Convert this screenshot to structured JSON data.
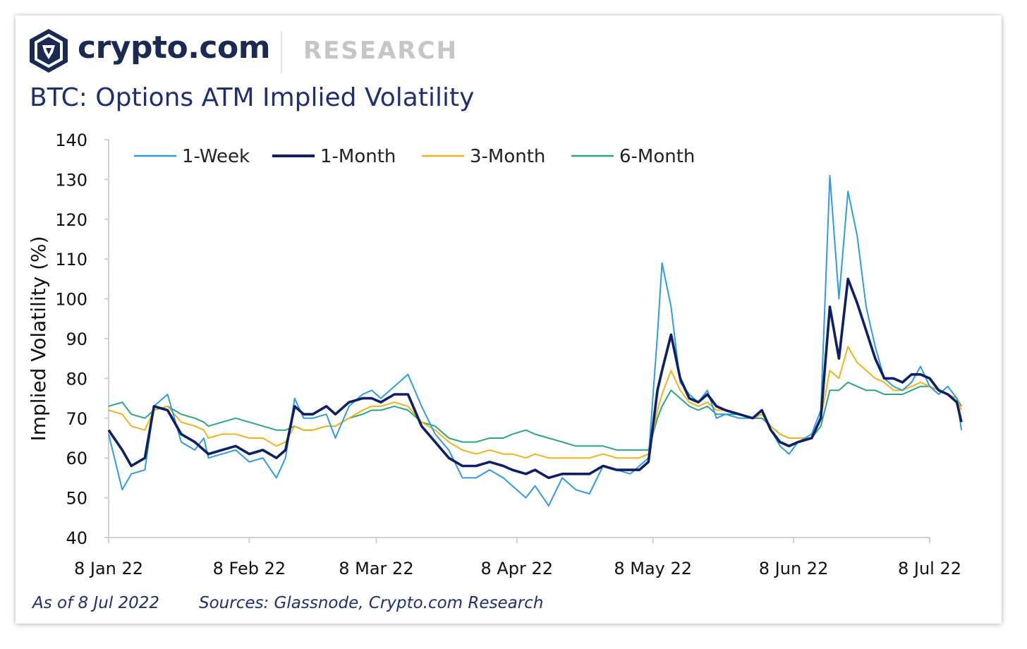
{
  "header": {
    "brand": "crypto.com",
    "section": "RESEARCH",
    "logo_icon": "crypto-com-lion-shield-icon"
  },
  "footer": {
    "as_of": "As of 8 Jul 2022",
    "sources": "Sources: Glassnode, Crypto.com Research"
  },
  "colors": {
    "brand": "#1b2a52",
    "title": "#1e2f73",
    "week": "#2e9be6",
    "month": "#0d1f66",
    "three_month": "#f2b318",
    "six_month": "#2aa685"
  },
  "chart_data": {
    "type": "line",
    "title": "BTC: Options ATM Implied Volatility",
    "xlabel": "",
    "ylabel": "Implied Volatility (%)",
    "ylim": [
      40,
      140
    ],
    "yticks": [
      40,
      50,
      60,
      70,
      80,
      90,
      100,
      110,
      120,
      130,
      140
    ],
    "x_tick_labels": [
      "8 Jan 22",
      "8 Feb 22",
      "8 Mar 22",
      "8 Apr 22",
      "8 May 22",
      "8 Jun 22",
      "8 Jul 22"
    ],
    "x_tick_day_index": [
      0,
      31,
      59,
      90,
      120,
      151,
      181
    ],
    "x_start": "8 Jan 22",
    "x_end": "8 Jul 22",
    "legend_position": "top-left",
    "grid": false,
    "series": [
      {
        "name": "1-Week",
        "points": [
          [
            0,
            66
          ],
          [
            3,
            52
          ],
          [
            5,
            56
          ],
          [
            8,
            57
          ],
          [
            10,
            73
          ],
          [
            13,
            76
          ],
          [
            16,
            64
          ],
          [
            19,
            62
          ],
          [
            21,
            65
          ],
          [
            22,
            60
          ],
          [
            25,
            61
          ],
          [
            28,
            62
          ],
          [
            31,
            59
          ],
          [
            34,
            60
          ],
          [
            37,
            55
          ],
          [
            39,
            60
          ],
          [
            41,
            75
          ],
          [
            43,
            70
          ],
          [
            45,
            70
          ],
          [
            48,
            71
          ],
          [
            50,
            65
          ],
          [
            53,
            73
          ],
          [
            56,
            76
          ],
          [
            58,
            77
          ],
          [
            60,
            75
          ],
          [
            63,
            78
          ],
          [
            66,
            81
          ],
          [
            69,
            73
          ],
          [
            72,
            66
          ],
          [
            75,
            62
          ],
          [
            78,
            55
          ],
          [
            81,
            55
          ],
          [
            84,
            57
          ],
          [
            87,
            55
          ],
          [
            89,
            53
          ],
          [
            92,
            50
          ],
          [
            94,
            53
          ],
          [
            97,
            48
          ],
          [
            100,
            55
          ],
          [
            103,
            52
          ],
          [
            106,
            51
          ],
          [
            109,
            58
          ],
          [
            112,
            57
          ],
          [
            115,
            56
          ],
          [
            117,
            58
          ],
          [
            119,
            60
          ],
          [
            121,
            91
          ],
          [
            122,
            109
          ],
          [
            124,
            98
          ],
          [
            126,
            79
          ],
          [
            128,
            76
          ],
          [
            130,
            74
          ],
          [
            132,
            77
          ],
          [
            134,
            70
          ],
          [
            136,
            71
          ],
          [
            139,
            70
          ],
          [
            142,
            70
          ],
          [
            144,
            72
          ],
          [
            146,
            67
          ],
          [
            148,
            63
          ],
          [
            150,
            61
          ],
          [
            152,
            64
          ],
          [
            155,
            66
          ],
          [
            157,
            72
          ],
          [
            159,
            131
          ],
          [
            161,
            100
          ],
          [
            163,
            127
          ],
          [
            165,
            116
          ],
          [
            167,
            98
          ],
          [
            169,
            88
          ],
          [
            171,
            80
          ],
          [
            173,
            78
          ],
          [
            175,
            77
          ],
          [
            177,
            79
          ],
          [
            179,
            83
          ],
          [
            181,
            78
          ],
          [
            183,
            76
          ],
          [
            185,
            78
          ],
          [
            187,
            75
          ],
          [
            188,
            67
          ]
        ]
      },
      {
        "name": "1-Month",
        "points": [
          [
            0,
            67
          ],
          [
            3,
            62
          ],
          [
            5,
            58
          ],
          [
            8,
            60
          ],
          [
            10,
            73
          ],
          [
            13,
            72
          ],
          [
            16,
            66
          ],
          [
            19,
            64
          ],
          [
            21,
            62
          ],
          [
            22,
            61
          ],
          [
            25,
            62
          ],
          [
            28,
            63
          ],
          [
            31,
            61
          ],
          [
            34,
            62
          ],
          [
            37,
            60
          ],
          [
            39,
            62
          ],
          [
            41,
            73
          ],
          [
            43,
            71
          ],
          [
            45,
            71
          ],
          [
            48,
            73
          ],
          [
            50,
            71
          ],
          [
            53,
            74
          ],
          [
            56,
            75
          ],
          [
            58,
            75
          ],
          [
            60,
            74
          ],
          [
            63,
            76
          ],
          [
            66,
            76
          ],
          [
            69,
            68
          ],
          [
            72,
            64
          ],
          [
            75,
            60
          ],
          [
            78,
            58
          ],
          [
            81,
            58
          ],
          [
            84,
            59
          ],
          [
            87,
            58
          ],
          [
            89,
            57
          ],
          [
            92,
            56
          ],
          [
            94,
            57
          ],
          [
            97,
            55
          ],
          [
            100,
            56
          ],
          [
            103,
            56
          ],
          [
            106,
            56
          ],
          [
            109,
            58
          ],
          [
            112,
            57
          ],
          [
            115,
            57
          ],
          [
            117,
            57
          ],
          [
            119,
            59
          ],
          [
            121,
            77
          ],
          [
            122,
            82
          ],
          [
            124,
            91
          ],
          [
            126,
            80
          ],
          [
            128,
            75
          ],
          [
            130,
            74
          ],
          [
            132,
            76
          ],
          [
            134,
            73
          ],
          [
            136,
            72
          ],
          [
            139,
            71
          ],
          [
            142,
            70
          ],
          [
            144,
            72
          ],
          [
            146,
            67
          ],
          [
            148,
            64
          ],
          [
            150,
            63
          ],
          [
            152,
            64
          ],
          [
            155,
            65
          ],
          [
            157,
            70
          ],
          [
            159,
            98
          ],
          [
            161,
            85
          ],
          [
            163,
            105
          ],
          [
            165,
            99
          ],
          [
            167,
            92
          ],
          [
            169,
            85
          ],
          [
            171,
            80
          ],
          [
            173,
            80
          ],
          [
            175,
            79
          ],
          [
            177,
            81
          ],
          [
            179,
            81
          ],
          [
            181,
            80
          ],
          [
            183,
            77
          ],
          [
            185,
            76
          ],
          [
            187,
            74
          ],
          [
            188,
            69
          ]
        ]
      },
      {
        "name": "3-Month",
        "points": [
          [
            0,
            72
          ],
          [
            3,
            71
          ],
          [
            5,
            68
          ],
          [
            8,
            67
          ],
          [
            10,
            72
          ],
          [
            13,
            73
          ],
          [
            16,
            69
          ],
          [
            19,
            68
          ],
          [
            21,
            67
          ],
          [
            22,
            65
          ],
          [
            25,
            66
          ],
          [
            28,
            66
          ],
          [
            31,
            65
          ],
          [
            34,
            65
          ],
          [
            37,
            63
          ],
          [
            39,
            64
          ],
          [
            41,
            68
          ],
          [
            43,
            67
          ],
          [
            45,
            67
          ],
          [
            48,
            68
          ],
          [
            50,
            68
          ],
          [
            53,
            70
          ],
          [
            56,
            72
          ],
          [
            58,
            73
          ],
          [
            60,
            73
          ],
          [
            63,
            74
          ],
          [
            66,
            73
          ],
          [
            69,
            69
          ],
          [
            72,
            67
          ],
          [
            75,
            64
          ],
          [
            78,
            62
          ],
          [
            81,
            61
          ],
          [
            84,
            62
          ],
          [
            87,
            61
          ],
          [
            89,
            61
          ],
          [
            92,
            60
          ],
          [
            94,
            61
          ],
          [
            97,
            60
          ],
          [
            100,
            60
          ],
          [
            103,
            60
          ],
          [
            106,
            60
          ],
          [
            109,
            61
          ],
          [
            112,
            60
          ],
          [
            115,
            60
          ],
          [
            117,
            60
          ],
          [
            119,
            61
          ],
          [
            121,
            72
          ],
          [
            122,
            76
          ],
          [
            124,
            82
          ],
          [
            126,
            77
          ],
          [
            128,
            74
          ],
          [
            130,
            73
          ],
          [
            132,
            74
          ],
          [
            134,
            72
          ],
          [
            136,
            72
          ],
          [
            139,
            71
          ],
          [
            142,
            70
          ],
          [
            144,
            71
          ],
          [
            146,
            68
          ],
          [
            148,
            66
          ],
          [
            150,
            65
          ],
          [
            152,
            65
          ],
          [
            155,
            65
          ],
          [
            157,
            70
          ],
          [
            159,
            82
          ],
          [
            161,
            80
          ],
          [
            163,
            88
          ],
          [
            165,
            84
          ],
          [
            167,
            82
          ],
          [
            169,
            80
          ],
          [
            171,
            79
          ],
          [
            173,
            77
          ],
          [
            175,
            77
          ],
          [
            177,
            78
          ],
          [
            179,
            79
          ],
          [
            181,
            78
          ],
          [
            183,
            77
          ],
          [
            185,
            76
          ],
          [
            187,
            75
          ],
          [
            188,
            72
          ]
        ]
      },
      {
        "name": "6-Month",
        "points": [
          [
            0,
            73
          ],
          [
            3,
            74
          ],
          [
            5,
            71
          ],
          [
            8,
            70
          ],
          [
            10,
            72
          ],
          [
            13,
            73
          ],
          [
            16,
            71
          ],
          [
            19,
            70
          ],
          [
            21,
            69
          ],
          [
            22,
            68
          ],
          [
            25,
            69
          ],
          [
            28,
            70
          ],
          [
            31,
            69
          ],
          [
            34,
            68
          ],
          [
            37,
            67
          ],
          [
            39,
            67
          ],
          [
            41,
            68
          ],
          [
            43,
            67
          ],
          [
            45,
            67
          ],
          [
            48,
            68
          ],
          [
            50,
            68
          ],
          [
            53,
            70
          ],
          [
            56,
            71
          ],
          [
            58,
            72
          ],
          [
            60,
            72
          ],
          [
            63,
            73
          ],
          [
            66,
            72
          ],
          [
            69,
            69
          ],
          [
            72,
            68
          ],
          [
            75,
            65
          ],
          [
            78,
            64
          ],
          [
            81,
            64
          ],
          [
            84,
            65
          ],
          [
            87,
            65
          ],
          [
            89,
            66
          ],
          [
            92,
            67
          ],
          [
            94,
            66
          ],
          [
            97,
            65
          ],
          [
            100,
            64
          ],
          [
            103,
            63
          ],
          [
            106,
            63
          ],
          [
            109,
            63
          ],
          [
            112,
            62
          ],
          [
            115,
            62
          ],
          [
            117,
            62
          ],
          [
            119,
            62
          ],
          [
            121,
            70
          ],
          [
            122,
            73
          ],
          [
            124,
            77
          ],
          [
            126,
            75
          ],
          [
            128,
            73
          ],
          [
            130,
            72
          ],
          [
            132,
            73
          ],
          [
            134,
            71
          ],
          [
            136,
            71
          ],
          [
            139,
            71
          ],
          [
            142,
            70
          ],
          [
            144,
            70
          ],
          [
            146,
            68
          ],
          [
            148,
            66
          ],
          [
            150,
            65
          ],
          [
            152,
            65
          ],
          [
            155,
            65
          ],
          [
            157,
            68
          ],
          [
            159,
            77
          ],
          [
            161,
            77
          ],
          [
            163,
            79
          ],
          [
            165,
            78
          ],
          [
            167,
            77
          ],
          [
            169,
            77
          ],
          [
            171,
            76
          ],
          [
            173,
            76
          ],
          [
            175,
            76
          ],
          [
            177,
            77
          ],
          [
            179,
            78
          ],
          [
            181,
            78
          ],
          [
            183,
            77
          ],
          [
            185,
            76
          ],
          [
            187,
            75
          ],
          [
            188,
            73
          ]
        ]
      }
    ]
  }
}
